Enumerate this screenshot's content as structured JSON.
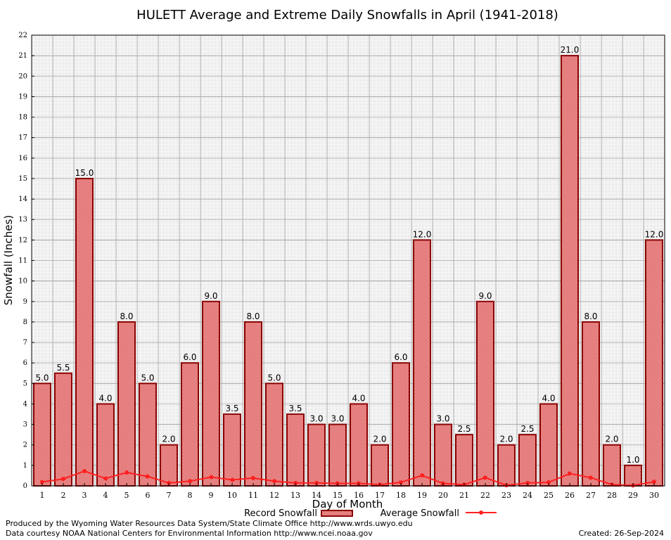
{
  "chart_data": {
    "type": "bar",
    "title": "HULETT Average and Extreme Daily Snowfalls in April (1941-2018)",
    "xlabel": "Day of Month",
    "ylabel": "Snowfall (Inches)",
    "ylim": [
      0,
      22
    ],
    "yticks": [
      0,
      1,
      2,
      3,
      4,
      5,
      6,
      7,
      8,
      9,
      10,
      11,
      12,
      13,
      14,
      15,
      16,
      17,
      18,
      19,
      20,
      21,
      22
    ],
    "grid": true,
    "legend_placement": "bottom",
    "categories": [
      "1",
      "2",
      "3",
      "4",
      "5",
      "6",
      "7",
      "8",
      "9",
      "10",
      "11",
      "12",
      "13",
      "14",
      "15",
      "16",
      "17",
      "18",
      "19",
      "20",
      "21",
      "22",
      "23",
      "24",
      "25",
      "26",
      "27",
      "28",
      "29",
      "30"
    ],
    "series": [
      {
        "name": "Record Snowfall",
        "type": "bar",
        "color": "#cc0000",
        "border": "#8b0000",
        "values": [
          5.0,
          5.5,
          15.0,
          4.0,
          8.0,
          5.0,
          2.0,
          6.0,
          9.0,
          3.5,
          8.0,
          5.0,
          3.5,
          3.0,
          3.0,
          4.0,
          2.0,
          6.0,
          12.0,
          3.0,
          2.5,
          9.0,
          2.0,
          2.5,
          4.0,
          21.0,
          8.0,
          2.0,
          1.0,
          12.0
        ],
        "labels": [
          "5.0",
          "5.5",
          "15.0",
          "4.0",
          "8.0",
          "5.0",
          "2.0",
          "6.0",
          "9.0",
          "3.5",
          "8.0",
          "5.0",
          "3.5",
          "3.0",
          "3.0",
          "4.0",
          "2.0",
          "6.0",
          "12.0",
          "3.0",
          "2.5",
          "9.0",
          "2.0",
          "2.5",
          "4.0",
          "21.0",
          "8.0",
          "2.0",
          "1.0",
          "12.0"
        ]
      },
      {
        "name": "Average Snowfall",
        "type": "line",
        "color": "#ff2020",
        "values": [
          0.19,
          0.34,
          0.72,
          0.36,
          0.65,
          0.46,
          0.14,
          0.23,
          0.43,
          0.29,
          0.38,
          0.23,
          0.14,
          0.14,
          0.12,
          0.12,
          0.06,
          0.17,
          0.51,
          0.12,
          0.06,
          0.4,
          0.03,
          0.14,
          0.17,
          0.6,
          0.4,
          0.06,
          0.02,
          0.2
        ]
      }
    ]
  },
  "footer": {
    "produced_by": "Produced by the Wyoming Water Resources Data System/State Climate Office http://www.wrds.uwyo.edu",
    "courtesy": "Data courtesy NOAA National Centers for Environmental Information http://www.ncei.noaa.gov",
    "created": "Created:  26-Sep-2024"
  }
}
